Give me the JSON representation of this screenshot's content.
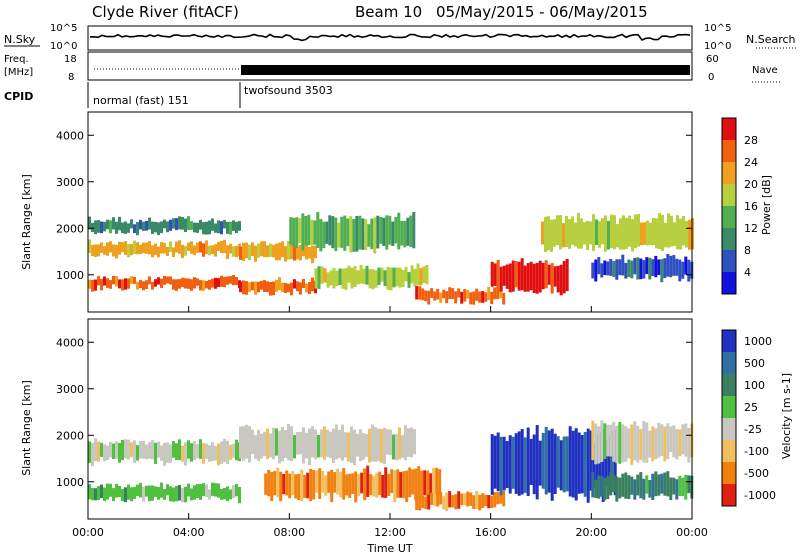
{
  "header": {
    "station": "Clyde River (fitACF)",
    "beam": "Beam 10",
    "dates": "05/May/2015 - 06/May/2015"
  },
  "strips": {
    "nsky_label": "N.Sky",
    "nsky_ticks": [
      "10^5",
      "10^0"
    ],
    "nsearch_label": "N.Search",
    "nsearch_ticks": [
      "10^5",
      "10^0"
    ],
    "freq_label_1": "Freq.",
    "freq_label_2": "[MHz]",
    "freq_ticks": [
      "18",
      "8"
    ],
    "nave_label": "Nave",
    "nave_ticks": [
      "60",
      "0"
    ],
    "cpid_label": "CPID",
    "cpid_modes": [
      {
        "name": "normal (fast) 151",
        "start_hour": 0,
        "end_hour": 6
      },
      {
        "name": "twofsound 3503",
        "start_hour": 6,
        "end_hour": 24
      }
    ]
  },
  "chart_data": [
    {
      "type": "heatmap",
      "name": "power",
      "ylabel": "Slant Range [km]",
      "ylim": [
        200,
        4500
      ],
      "yticks": [
        "1000",
        "2000",
        "3000",
        "4000"
      ],
      "xlim": [
        0,
        24
      ],
      "colorbar": {
        "label": "Power [dB]",
        "ticks": [
          "4",
          "8",
          "12",
          "16",
          "20",
          "24",
          "28"
        ],
        "colors": [
          "#1010e0",
          "#3050c0",
          "#3a8a6a",
          "#50b050",
          "#b8d040",
          "#f0a020",
          "#f06010",
          "#e01010"
        ]
      },
      "bands": [
        {
          "t0": 0.0,
          "t1": 6.0,
          "r0": 1400,
          "r1": 1700,
          "level": 5
        },
        {
          "t0": 0.0,
          "t1": 6.0,
          "r0": 700,
          "r1": 950,
          "level": 6
        },
        {
          "t0": 0.0,
          "t1": 6.0,
          "r0": 1900,
          "r1": 2200,
          "level": 2
        },
        {
          "t0": 6.0,
          "t1": 9.0,
          "r0": 1300,
          "r1": 1700,
          "level": 5
        },
        {
          "t0": 6.0,
          "t1": 9.0,
          "r0": 600,
          "r1": 900,
          "level": 6
        },
        {
          "t0": 8.0,
          "t1": 13.0,
          "r0": 1500,
          "r1": 2300,
          "level": 3
        },
        {
          "t0": 9.0,
          "t1": 13.5,
          "r0": 700,
          "r1": 1200,
          "level": 4
        },
        {
          "t0": 13.0,
          "t1": 16.5,
          "r0": 400,
          "r1": 700,
          "level": 6
        },
        {
          "t0": 16.0,
          "t1": 19.0,
          "r0": 600,
          "r1": 1300,
          "level": 7
        },
        {
          "t0": 18.0,
          "t1": 24.0,
          "r0": 1500,
          "r1": 2300,
          "level": 4
        },
        {
          "t0": 20.0,
          "t1": 24.0,
          "r0": 900,
          "r1": 1400,
          "level": 1
        }
      ]
    },
    {
      "type": "heatmap",
      "name": "velocity",
      "ylabel": "Slant Range [km]",
      "ylim": [
        200,
        4500
      ],
      "yticks": [
        "1000",
        "2000",
        "3000",
        "4000"
      ],
      "xlim": [
        0,
        24
      ],
      "xticks": [
        "00:00",
        "04:00",
        "08:00",
        "12:00",
        "16:00",
        "20:00",
        "00:00"
      ],
      "xlabel": "Time UT",
      "colorbar": {
        "label": "Velocity [m s-1]",
        "ticks": [
          "1000",
          "500",
          "100",
          "25",
          "-25",
          "-100",
          "-500",
          "-1000"
        ],
        "colors": [
          "#2030c0",
          "#3070a0",
          "#3a8060",
          "#50c040",
          "#c8c8c0",
          "#f0c060",
          "#f08010",
          "#e02010"
        ]
      },
      "bands": [
        {
          "t0": 0.0,
          "t1": 6.0,
          "r0": 1400,
          "r1": 1900,
          "level": 4
        },
        {
          "t0": 0.0,
          "t1": 6.0,
          "r0": 600,
          "r1": 950,
          "level": 3
        },
        {
          "t0": 6.0,
          "t1": 13.0,
          "r0": 1400,
          "r1": 2200,
          "level": 4
        },
        {
          "t0": 7.0,
          "t1": 14.0,
          "r0": 600,
          "r1": 1300,
          "level": 6
        },
        {
          "t0": 13.0,
          "t1": 16.5,
          "r0": 400,
          "r1": 800,
          "level": 6
        },
        {
          "t0": 16.0,
          "t1": 21.0,
          "r0": 600,
          "r1": 2200,
          "level": 0
        },
        {
          "t0": 20.0,
          "t1": 24.0,
          "r0": 1400,
          "r1": 2300,
          "level": 4
        },
        {
          "t0": 20.0,
          "t1": 24.0,
          "r0": 600,
          "r1": 1200,
          "level": 2
        }
      ]
    }
  ]
}
